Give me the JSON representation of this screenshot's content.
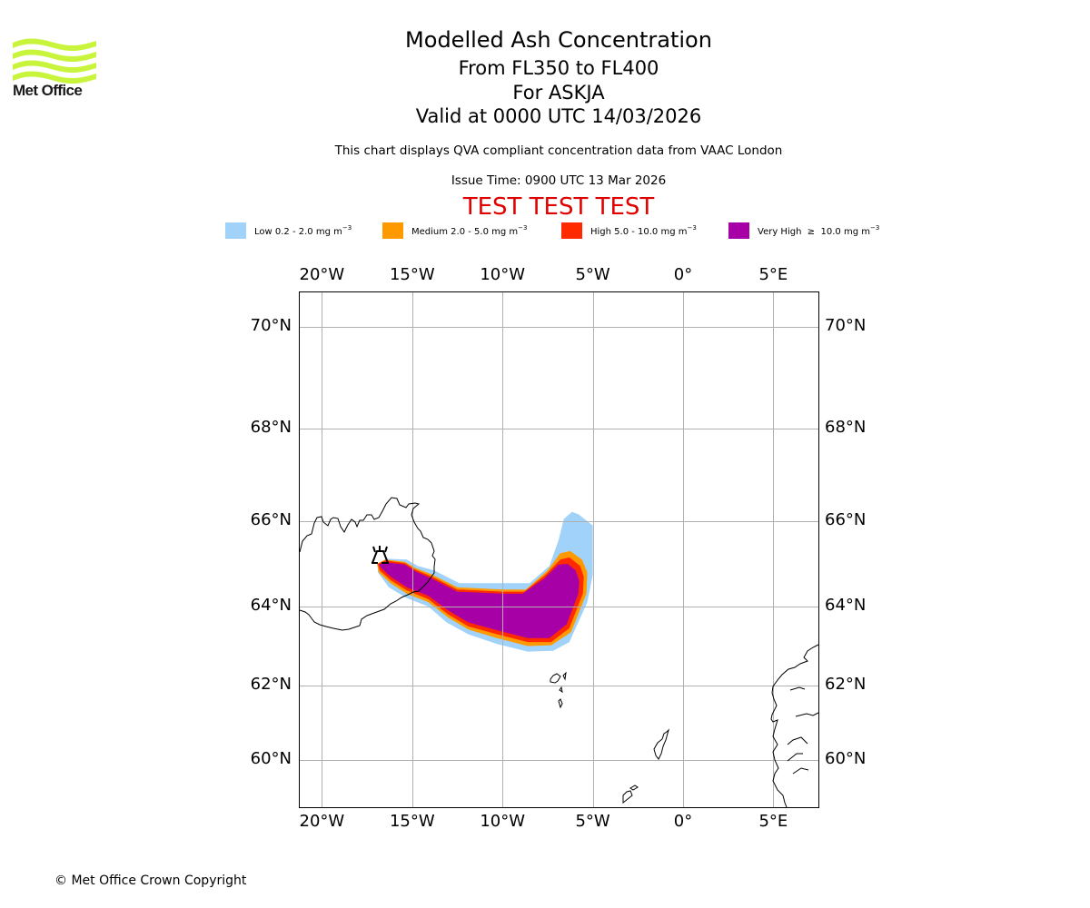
{
  "logo": {
    "text": "Met Office",
    "color": "#c8f53c"
  },
  "header": {
    "title": "Modelled Ash Concentration",
    "levels": "From FL350 to FL400",
    "volcano": "For ASKJA",
    "valid": "Valid at 0000 UTC 14/03/2026",
    "subtitle": "This chart displays QVA compliant concentration data from VAAC London",
    "issue_time": "Issue Time: 0900 UTC 13 Mar 2026",
    "test_banner": "TEST TEST TEST",
    "test_color": "#e00000"
  },
  "legend": [
    {
      "label": "Low 0.2 - 2.0 mg m",
      "exp": "−3",
      "color": "#a0d2fa"
    },
    {
      "label": "Medium 2.0 - 5.0 mg m",
      "exp": "−3",
      "color": "#ff9900"
    },
    {
      "label": "High 5.0 - 10.0 mg m",
      "exp": "−3",
      "color": "#ff2a00"
    },
    {
      "label": "Very High  ≥  10.0 mg m",
      "exp": "−3",
      "color": "#a600a6"
    }
  ],
  "footer": {
    "copyright": "© Met Office Crown Copyright"
  },
  "chart_data": {
    "type": "map",
    "title": "Modelled Ash Concentration",
    "extent": {
      "lon": [
        -21.3,
        7.5
      ],
      "lat": [
        58.9,
        70.7
      ]
    },
    "lon_ticks": [
      {
        "value": -20,
        "label": "20°W"
      },
      {
        "value": -15,
        "label": "15°W"
      },
      {
        "value": -10,
        "label": "10°W"
      },
      {
        "value": -5,
        "label": "5°W"
      },
      {
        "value": 0,
        "label": "0°"
      },
      {
        "value": 5,
        "label": "5°E"
      }
    ],
    "lat_ticks": [
      {
        "value": 70,
        "label": "70°N"
      },
      {
        "value": 68,
        "label": "68°N"
      },
      {
        "value": 66,
        "label": "66°N"
      },
      {
        "value": 64,
        "label": "64°N"
      },
      {
        "value": 62,
        "label": "62°N"
      },
      {
        "value": 60,
        "label": "60°N"
      }
    ],
    "grid": true,
    "volcano": {
      "name": "ASKJA",
      "lon": -16.7,
      "lat": 65.05
    },
    "ash_regions": [
      {
        "level": "Low",
        "color": "#a0d2fa",
        "polygon": [
          [
            -16.9,
            64.95
          ],
          [
            -16.4,
            65.12
          ],
          [
            -15.3,
            65.1
          ],
          [
            -14.7,
            64.95
          ],
          [
            -13.8,
            64.85
          ],
          [
            -12.4,
            64.55
          ],
          [
            -10.0,
            64.55
          ],
          [
            -8.5,
            64.55
          ],
          [
            -7.4,
            64.95
          ],
          [
            -6.9,
            65.55
          ],
          [
            -6.6,
            66.05
          ],
          [
            -6.15,
            66.2
          ],
          [
            -5.8,
            66.15
          ],
          [
            -5.0,
            65.9
          ],
          [
            -5.0,
            64.75
          ],
          [
            -5.3,
            64.1
          ],
          [
            -6.3,
            63.1
          ],
          [
            -7.2,
            62.88
          ],
          [
            -8.6,
            62.86
          ],
          [
            -10.3,
            63.05
          ],
          [
            -11.9,
            63.3
          ],
          [
            -13.1,
            63.6
          ],
          [
            -14.1,
            64.0
          ],
          [
            -15.3,
            64.2
          ],
          [
            -16.3,
            64.45
          ],
          [
            -16.9,
            64.8
          ]
        ]
      },
      {
        "level": "Medium",
        "color": "#ff9900",
        "polygon": [
          [
            -16.95,
            65.0
          ],
          [
            -16.5,
            65.1
          ],
          [
            -15.4,
            65.05
          ],
          [
            -14.8,
            64.9
          ],
          [
            -13.9,
            64.75
          ],
          [
            -12.5,
            64.45
          ],
          [
            -10.0,
            64.4
          ],
          [
            -8.7,
            64.4
          ],
          [
            -7.5,
            64.85
          ],
          [
            -6.8,
            65.25
          ],
          [
            -6.25,
            65.3
          ],
          [
            -5.6,
            65.1
          ],
          [
            -5.3,
            64.8
          ],
          [
            -5.35,
            64.3
          ],
          [
            -6.2,
            63.35
          ],
          [
            -7.3,
            63.02
          ],
          [
            -8.6,
            63.0
          ],
          [
            -10.3,
            63.2
          ],
          [
            -11.9,
            63.42
          ],
          [
            -13.0,
            63.72
          ],
          [
            -14.1,
            64.1
          ],
          [
            -15.3,
            64.3
          ],
          [
            -16.2,
            64.55
          ],
          [
            -16.85,
            64.8
          ]
        ]
      },
      {
        "level": "High",
        "color": "#ff2a00",
        "polygon": [
          [
            -16.9,
            65.0
          ],
          [
            -16.5,
            65.08
          ],
          [
            -15.4,
            65.02
          ],
          [
            -14.8,
            64.86
          ],
          [
            -13.9,
            64.7
          ],
          [
            -12.5,
            64.4
          ],
          [
            -10.0,
            64.35
          ],
          [
            -8.8,
            64.35
          ],
          [
            -7.6,
            64.75
          ],
          [
            -6.8,
            65.1
          ],
          [
            -6.3,
            65.15
          ],
          [
            -5.7,
            64.95
          ],
          [
            -5.5,
            64.7
          ],
          [
            -5.55,
            64.3
          ],
          [
            -6.3,
            63.45
          ],
          [
            -7.3,
            63.1
          ],
          [
            -8.6,
            63.1
          ],
          [
            -10.3,
            63.3
          ],
          [
            -11.9,
            63.5
          ],
          [
            -13.0,
            63.8
          ],
          [
            -14.1,
            64.17
          ],
          [
            -15.3,
            64.38
          ],
          [
            -16.2,
            64.62
          ],
          [
            -16.8,
            64.85
          ]
        ]
      },
      {
        "level": "Very High",
        "color": "#a600a6",
        "polygon": [
          [
            -16.85,
            64.98
          ],
          [
            -16.5,
            65.04
          ],
          [
            -15.4,
            64.98
          ],
          [
            -14.8,
            64.82
          ],
          [
            -13.9,
            64.65
          ],
          [
            -12.5,
            64.35
          ],
          [
            -10.0,
            64.3
          ],
          [
            -8.9,
            64.3
          ],
          [
            -7.7,
            64.65
          ],
          [
            -6.9,
            64.98
          ],
          [
            -6.4,
            65.0
          ],
          [
            -5.95,
            64.85
          ],
          [
            -5.75,
            64.6
          ],
          [
            -5.8,
            64.3
          ],
          [
            -6.45,
            63.55
          ],
          [
            -7.4,
            63.2
          ],
          [
            -8.6,
            63.2
          ],
          [
            -10.3,
            63.4
          ],
          [
            -11.9,
            63.6
          ],
          [
            -13.0,
            63.9
          ],
          [
            -14.1,
            64.25
          ],
          [
            -15.3,
            64.45
          ],
          [
            -16.2,
            64.7
          ],
          [
            -16.7,
            64.9
          ]
        ]
      }
    ]
  }
}
